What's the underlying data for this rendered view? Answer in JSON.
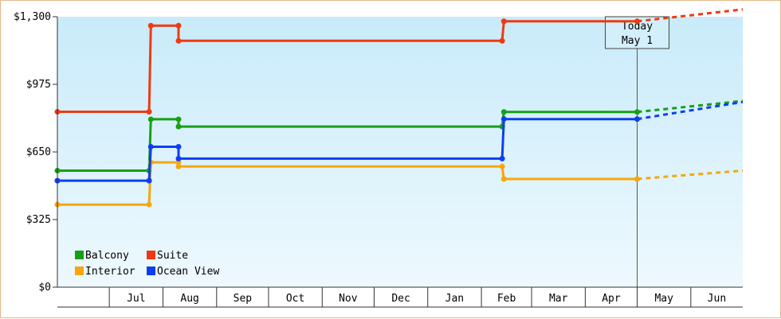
{
  "chart_data": {
    "type": "line",
    "y_ticks": [
      "$0",
      "$325",
      "$650",
      "$975",
      "$1,300"
    ],
    "y_tick_values": [
      0,
      325,
      650,
      975,
      1300
    ],
    "ylim": [
      0,
      1300
    ],
    "month_labels": [
      "Jul",
      "Aug",
      "Sep",
      "Oct",
      "Nov",
      "Dec",
      "Jan",
      "Feb",
      "Mar",
      "Apr",
      "May",
      "Jun"
    ],
    "today": {
      "line1": "Today",
      "line2": "May 1"
    },
    "grid": false,
    "legend_position": "bottom-left",
    "series": [
      {
        "name": "Balcony",
        "color": "#16a016",
        "points": [
          {
            "date": "2023-06-01",
            "value": 560
          },
          {
            "date": "2023-07-24",
            "value": 560
          },
          {
            "date": "2023-07-25",
            "value": 807
          },
          {
            "date": "2023-08-10",
            "value": 807
          },
          {
            "date": "2023-08-10",
            "value": 772
          },
          {
            "date": "2024-02-13",
            "value": 772
          },
          {
            "date": "2024-02-14",
            "value": 842
          },
          {
            "date": "2024-05-01",
            "value": 842
          }
        ],
        "forecast": [
          {
            "date": "2024-05-01",
            "value": 842
          },
          {
            "date": "2024-07-01",
            "value": 895
          }
        ]
      },
      {
        "name": "Suite",
        "color": "#ee3a12",
        "points": [
          {
            "date": "2023-06-01",
            "value": 843
          },
          {
            "date": "2023-07-24",
            "value": 843
          },
          {
            "date": "2023-07-25",
            "value": 1257
          },
          {
            "date": "2023-08-10",
            "value": 1257
          },
          {
            "date": "2023-08-10",
            "value": 1184
          },
          {
            "date": "2024-02-13",
            "value": 1184
          },
          {
            "date": "2024-02-14",
            "value": 1278
          },
          {
            "date": "2024-05-01",
            "value": 1278
          }
        ],
        "forecast": [
          {
            "date": "2024-05-01",
            "value": 1278
          },
          {
            "date": "2024-07-01",
            "value": 1335
          }
        ]
      },
      {
        "name": "Interior",
        "color": "#f5a70f",
        "points": [
          {
            "date": "2023-06-01",
            "value": 397
          },
          {
            "date": "2023-07-24",
            "value": 397
          },
          {
            "date": "2023-07-25",
            "value": 600
          },
          {
            "date": "2023-08-10",
            "value": 600
          },
          {
            "date": "2023-08-10",
            "value": 580
          },
          {
            "date": "2024-02-13",
            "value": 580
          },
          {
            "date": "2024-02-14",
            "value": 520
          },
          {
            "date": "2024-05-01",
            "value": 520
          }
        ],
        "forecast": [
          {
            "date": "2024-05-01",
            "value": 520
          },
          {
            "date": "2024-07-01",
            "value": 560
          }
        ]
      },
      {
        "name": "Ocean View",
        "color": "#0e3ef0",
        "points": [
          {
            "date": "2023-06-01",
            "value": 512
          },
          {
            "date": "2023-07-24",
            "value": 512
          },
          {
            "date": "2023-07-25",
            "value": 675
          },
          {
            "date": "2023-08-10",
            "value": 675
          },
          {
            "date": "2023-08-10",
            "value": 618
          },
          {
            "date": "2024-02-13",
            "value": 618
          },
          {
            "date": "2024-02-14",
            "value": 808
          },
          {
            "date": "2024-05-01",
            "value": 808
          }
        ],
        "forecast": [
          {
            "date": "2024-05-01",
            "value": 808
          },
          {
            "date": "2024-07-01",
            "value": 890
          }
        ]
      }
    ],
    "legend_order": [
      "Balcony",
      "Suite",
      "Interior",
      "Ocean View"
    ]
  }
}
